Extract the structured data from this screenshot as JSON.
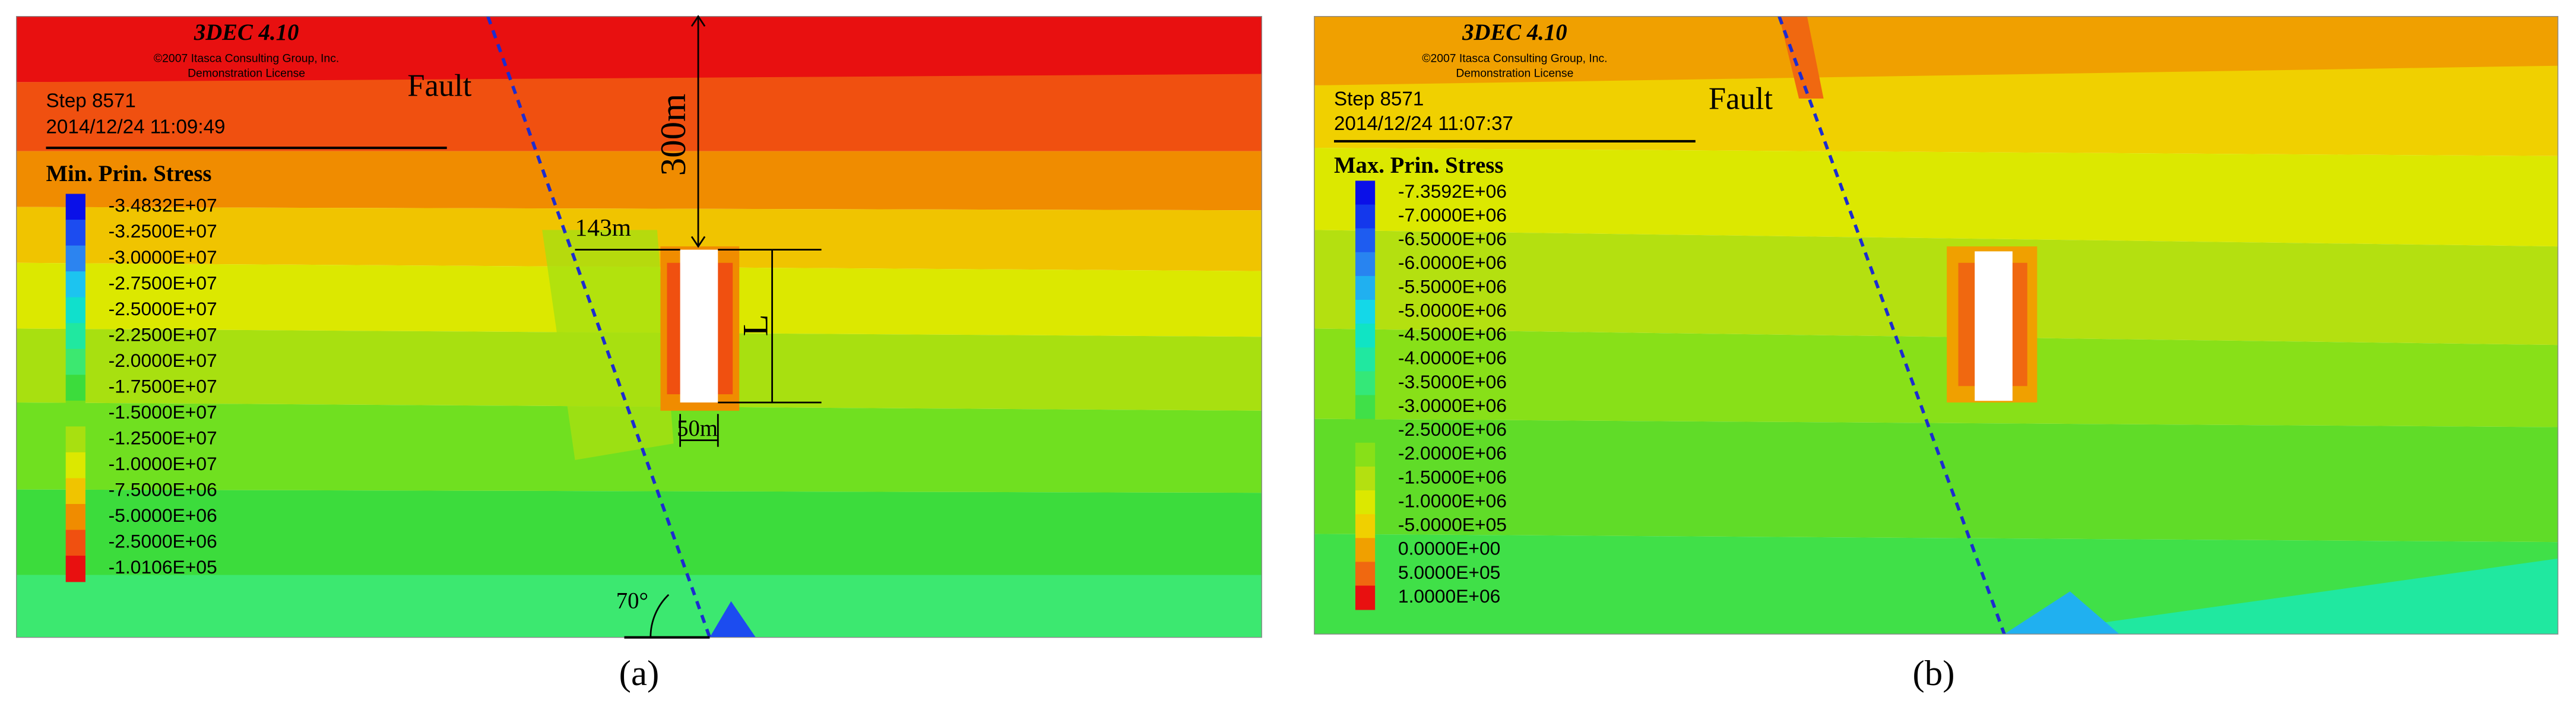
{
  "panels": [
    {
      "header": {
        "program": "3DEC 4.10",
        "copyright": "©2007 Itasca Consulting Group, Inc.",
        "license": "Demonstration License",
        "step": "Step 8571",
        "timestamp": "2014/12/24 11:09:49"
      },
      "fault_label": "Fault",
      "legend": {
        "title": "Min. Prin. Stress",
        "entries": [
          {
            "label": "-3.4832E+07",
            "color": "#0a10e8"
          },
          {
            "label": "-3.2500E+07",
            "color": "#1c4cf0"
          },
          {
            "label": "-3.0000E+07",
            "color": "#2c84f0"
          },
          {
            "label": "-2.7500E+07",
            "color": "#1cc4f0"
          },
          {
            "label": "-2.5000E+07",
            "color": "#10e0cc"
          },
          {
            "label": "-2.2500E+07",
            "color": "#20e8a0"
          },
          {
            "label": "-2.0000E+07",
            "color": "#3ce870"
          },
          {
            "label": "-1.7500E+07",
            "color": "#3cdc3c"
          },
          {
            "label": "-1.5000E+07",
            "color": "#70e020"
          },
          {
            "label": "-1.2500E+07",
            "color": "#a8e010"
          },
          {
            "label": "-1.0000E+07",
            "color": "#dce800"
          },
          {
            "label": "-7.5000E+06",
            "color": "#f0c400"
          },
          {
            "label": "-5.0000E+06",
            "color": "#f08c00"
          },
          {
            "label": "-2.5000E+06",
            "color": "#f05010"
          },
          {
            "label": "-1.0106E+05",
            "color": "#e81010"
          }
        ]
      },
      "annotations": {
        "depth": "300m",
        "offset": "143m",
        "length": "L",
        "width": "50m",
        "dip": "70°"
      },
      "caption": "(a)"
    },
    {
      "header": {
        "program": "3DEC 4.10",
        "copyright": "©2007 Itasca Consulting Group, Inc.",
        "license": "Demonstration License",
        "step": "Step 8571",
        "timestamp": "2014/12/24 11:07:37"
      },
      "fault_label": "Fault",
      "legend": {
        "title": "Max. Prin. Stress",
        "entries": [
          {
            "label": "-7.3592E+06",
            "color": "#0a10e8"
          },
          {
            "label": "-7.0000E+06",
            "color": "#1438ec"
          },
          {
            "label": "-6.5000E+06",
            "color": "#1e5cf0"
          },
          {
            "label": "-6.0000E+06",
            "color": "#2884f0"
          },
          {
            "label": "-5.5000E+06",
            "color": "#20b0f0"
          },
          {
            "label": "-5.0000E+06",
            "color": "#14d8e8"
          },
          {
            "label": "-4.5000E+06",
            "color": "#10e4c4"
          },
          {
            "label": "-4.0000E+06",
            "color": "#20e8a0"
          },
          {
            "label": "-3.5000E+06",
            "color": "#34e878"
          },
          {
            "label": "-3.0000E+06",
            "color": "#40e048"
          },
          {
            "label": "-2.5000E+06",
            "color": "#60dc28"
          },
          {
            "label": "-2.0000E+06",
            "color": "#88e018"
          },
          {
            "label": "-1.5000E+06",
            "color": "#b4e010"
          },
          {
            "label": "-1.0000E+06",
            "color": "#dce800"
          },
          {
            "label": "-5.0000E+05",
            "color": "#f0d000"
          },
          {
            "label": "0.0000E+00",
            "color": "#f0a000"
          },
          {
            "label": "5.0000E+05",
            "color": "#f06810"
          },
          {
            "label": "1.0000E+06",
            "color": "#e81010"
          }
        ]
      },
      "caption": "(b)"
    }
  ]
}
